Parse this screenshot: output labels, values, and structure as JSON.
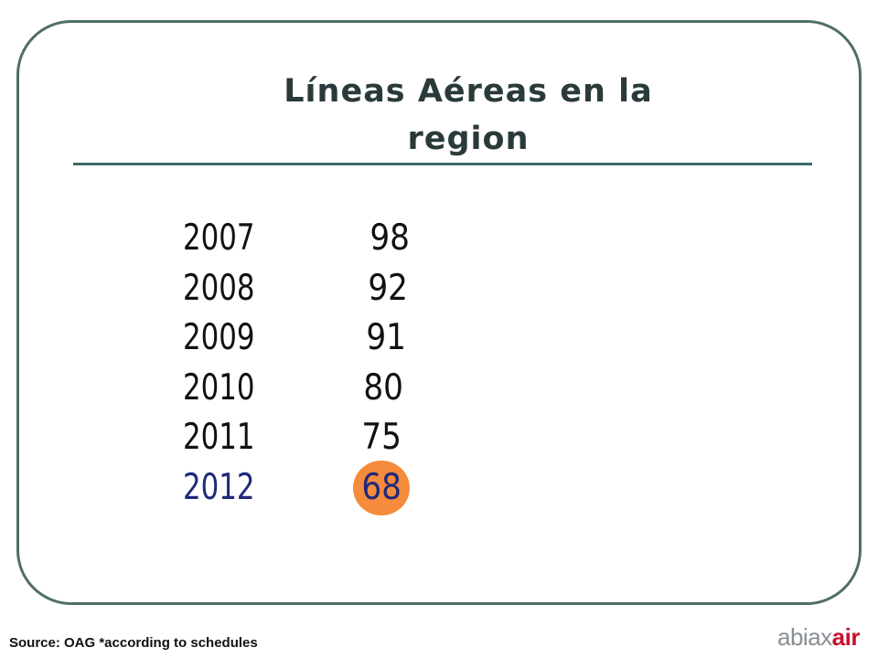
{
  "title_lines": [
    "Líneas Aéreas en la",
    "region"
  ],
  "rows": [
    [
      "2007",
      "98"
    ],
    [
      "2008",
      "92"
    ],
    [
      "2009",
      "91"
    ],
    [
      "2010",
      "80"
    ],
    [
      "2011",
      "75"
    ],
    [
      "2012",
      "68"
    ]
  ],
  "footer": "Source:  OAG *according to schedules",
  "logo": [
    "abiax",
    "air"
  ]
}
